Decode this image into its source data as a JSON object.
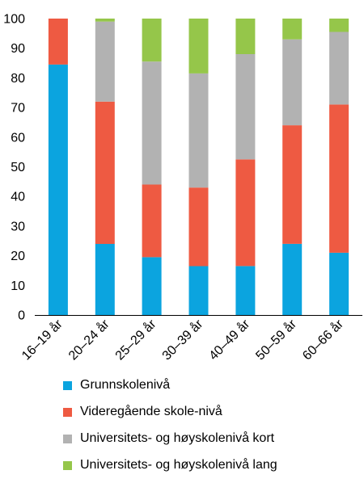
{
  "chart_data": {
    "type": "bar",
    "stacked": true,
    "categories": [
      "16–19 år",
      "20–24 år",
      "25–29 år",
      "30–39 år",
      "40–49 år",
      "50–59 år",
      "60–66 år"
    ],
    "series": [
      {
        "name": "Grunnskolenivå",
        "color": "#0ba4df",
        "values": [
          84.5,
          24,
          19.5,
          16.5,
          16.5,
          24,
          21
        ]
      },
      {
        "name": "Videregående skole-nivå",
        "color": "#ee5a42",
        "values": [
          15.5,
          48,
          24.5,
          26.5,
          36,
          40,
          50
        ]
      },
      {
        "name": "Universitets- og høyskolenivå kort",
        "color": "#b2b2b2",
        "values": [
          0,
          27,
          41.5,
          38.5,
          35.5,
          29,
          24.5
        ]
      },
      {
        "name": "Universitets- og høyskolenivå lang",
        "color": "#95c64a",
        "values": [
          0,
          1,
          14.5,
          18.5,
          12,
          7,
          4.5
        ]
      }
    ],
    "yticks": [
      0,
      10,
      20,
      30,
      40,
      50,
      60,
      70,
      80,
      90,
      100
    ],
    "ylim": [
      0,
      100
    ],
    "grid": false,
    "legend_position": "bottom"
  }
}
